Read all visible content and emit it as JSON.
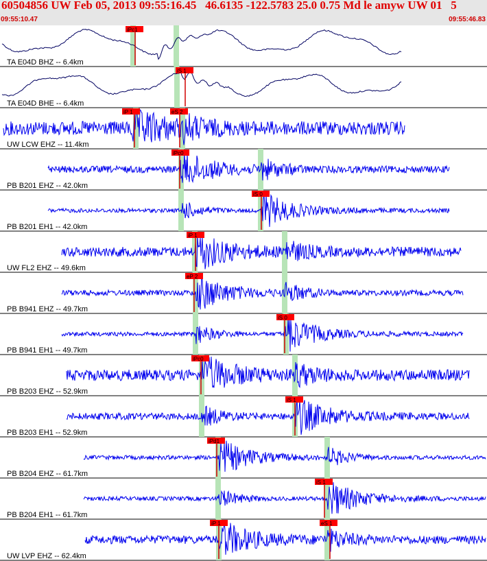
{
  "header": {
    "title": "60504856 UW Feb 05, 2013 09:55:16.45   46.6135 -122.5783 25.0 0.75 Md le amyw UW 01   5",
    "start_time": "09:55:10.47",
    "end_time": "09:55:46.83"
  },
  "colors": {
    "header_bg": "#e6e6e6",
    "header_text": "#e00000",
    "trace_broadband": "#000060",
    "trace_short_period": "#0000ee",
    "pick_flag": "#ff0000",
    "pick_line": "#d00000",
    "pick_window": "#b7e4b7"
  },
  "channels": [
    {
      "label": "TA E04D BHZ -- 6.4km",
      "kind": "broadband",
      "picks": [
        {
          "text": "iPc1"
        }
      ]
    },
    {
      "label": "TA E04D BHE -- 6.4km",
      "kind": "broadband",
      "picks": [
        {
          "text": "iS 1"
        }
      ]
    },
    {
      "label": "UW LCW EHZ -- 11.4km",
      "kind": "short_period",
      "picks": [
        {
          "text": "iP 1"
        },
        {
          "text": "eS 2"
        }
      ]
    },
    {
      "label": "PB B201 EHZ -- 42.0km",
      "kind": "short_period",
      "picks": [
        {
          "text": "iPc0"
        }
      ]
    },
    {
      "label": "PB B201 EH1 -- 42.0km",
      "kind": "short_period",
      "picks": [
        {
          "text": "iS 0"
        }
      ]
    },
    {
      "label": "UW FL2 EHZ -- 49.6km",
      "kind": "short_period",
      "picks": [
        {
          "text": "iP 1"
        }
      ]
    },
    {
      "label": "PB B941 EHZ -- 49.7km",
      "kind": "short_period",
      "picks": [
        {
          "text": "eP 2"
        }
      ]
    },
    {
      "label": "PB B941 EH1 -- 49.7km",
      "kind": "short_period",
      "picks": [
        {
          "text": "iS 0"
        }
      ]
    },
    {
      "label": "PB B203 EHZ -- 52.9km",
      "kind": "short_period",
      "picks": [
        {
          "text": "iPc0"
        }
      ]
    },
    {
      "label": "PB B203 EH1 -- 52.9km",
      "kind": "short_period",
      "picks": [
        {
          "text": "iS 1"
        }
      ]
    },
    {
      "label": "PB B204 EHZ -- 61.7km",
      "kind": "short_period",
      "picks": [
        {
          "text": "iPd1"
        }
      ]
    },
    {
      "label": "PB B204 EH1 -- 61.7km",
      "kind": "short_period",
      "picks": [
        {
          "text": "iS 1"
        }
      ]
    },
    {
      "label": "UW LVP EHZ -- 62.4km",
      "kind": "short_period",
      "picks": [
        {
          "text": "iP 1"
        },
        {
          "text": "eS 1"
        }
      ]
    }
  ]
}
